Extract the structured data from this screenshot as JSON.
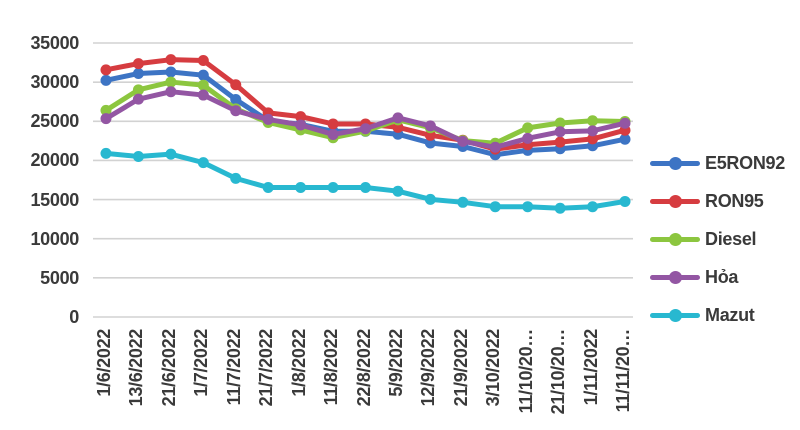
{
  "chart_data": {
    "type": "line",
    "title": "",
    "xlabel": "",
    "ylabel": "",
    "categories": [
      "1/6/2022",
      "13/6/2022",
      "21/6/2022",
      "1/7/2022",
      "11/7/2022",
      "21/7/2022",
      "1/8/2022",
      "11/8/2022",
      "22/8/2022",
      "5/9/2022",
      "12/9/2022",
      "21/9/2022",
      "3/10/2022",
      "11/10/20…",
      "21/10/20…",
      "1/11/2022",
      "11/11/20…"
    ],
    "series": [
      {
        "name": "E5RON92",
        "color": "#3d74c4",
        "values": [
          30230,
          31110,
          31300,
          30890,
          27780,
          25070,
          24620,
          23720,
          23720,
          23350,
          22230,
          21780,
          20730,
          21290,
          21490,
          21870,
          22710
        ]
      },
      {
        "name": "RON95",
        "color": "#d63c40",
        "values": [
          31570,
          32370,
          32870,
          32760,
          29670,
          26070,
          25600,
          24660,
          24660,
          24230,
          23210,
          22580,
          21440,
          22000,
          22340,
          22750,
          23860
        ]
      },
      {
        "name": "Diesel",
        "color": "#8cc63f",
        "values": [
          26390,
          29020,
          30010,
          29610,
          26590,
          24850,
          23900,
          22900,
          23750,
          25180,
          24180,
          22530,
          22200,
          24160,
          24780,
          25070,
          24980
        ]
      },
      {
        "name": "Hỏa",
        "color": "#9356a3",
        "values": [
          25340,
          27830,
          28780,
          28350,
          26340,
          25240,
          24530,
          23320,
          24050,
          25440,
          24410,
          22440,
          21680,
          22820,
          23660,
          23780,
          24750
        ]
      },
      {
        "name": "Mazut",
        "color": "#28b8d0",
        "values": [
          20900,
          20500,
          20800,
          19720,
          17710,
          16540,
          16540,
          16540,
          16540,
          16070,
          15030,
          14650,
          14090,
          14090,
          13890,
          14080,
          14760
        ]
      }
    ],
    "y_axis": {
      "min": 0,
      "max": 35000,
      "step": 5000,
      "tick_labels": [
        "0",
        "5000",
        "10000",
        "15000",
        "20000",
        "25000",
        "30000",
        "35000"
      ]
    },
    "legend_position": "right",
    "legend_entries": [
      "E5RON92",
      "RON95",
      "Diesel",
      "Hỏa",
      "Mazut"
    ],
    "grid": true
  },
  "colors": {
    "background": "#ffffff",
    "gridline": "#d2d2d2",
    "axis_text": "#3a3a3a"
  }
}
